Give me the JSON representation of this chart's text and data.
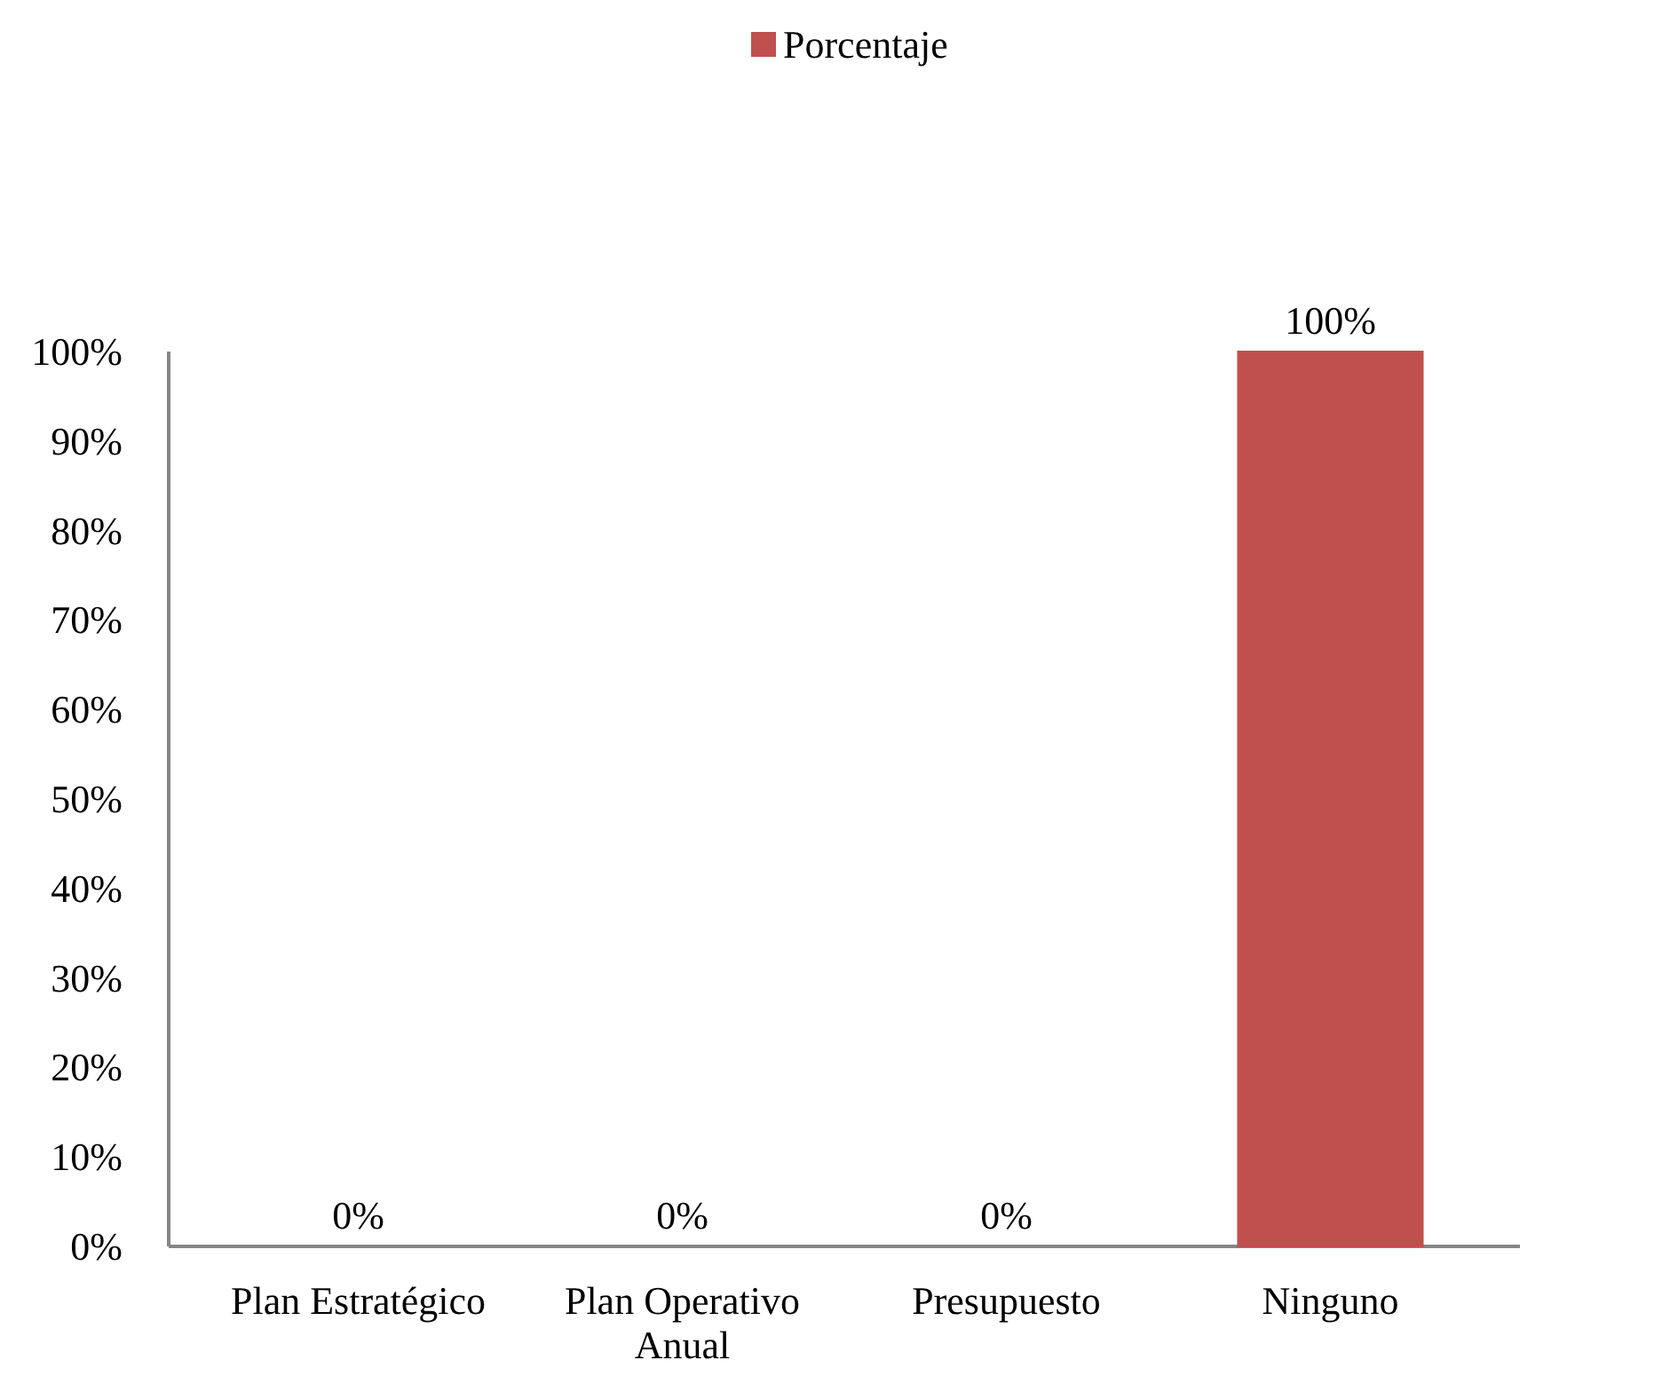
{
  "chart_data": {
    "type": "bar",
    "categories": [
      "Plan Estratégico",
      "Plan Operativo Anual",
      "Presupuesto",
      "Ninguno"
    ],
    "series": [
      {
        "name": "Porcentaje",
        "color": "#c0504d",
        "values": [
          0,
          0,
          0,
          100
        ],
        "value_labels": [
          "0%",
          "0%",
          "0%",
          "100%"
        ]
      }
    ],
    "ylim": [
      0,
      100
    ],
    "yticks": [
      {
        "value": 0,
        "label": "0%"
      },
      {
        "value": 10,
        "label": "10%"
      },
      {
        "value": 20,
        "label": "20%"
      },
      {
        "value": 30,
        "label": "30%"
      },
      {
        "value": 40,
        "label": "40%"
      },
      {
        "value": 50,
        "label": "50%"
      },
      {
        "value": 60,
        "label": "60%"
      },
      {
        "value": 70,
        "label": "70%"
      },
      {
        "value": 80,
        "label": "80%"
      },
      {
        "value": 90,
        "label": "90%"
      },
      {
        "value": 100,
        "label": "100%"
      }
    ],
    "grid": false,
    "legend": "top"
  }
}
